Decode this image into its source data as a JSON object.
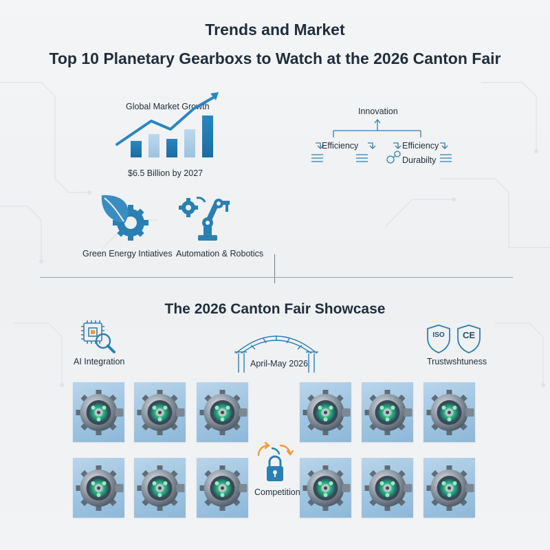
{
  "header": {
    "title": "Trends and Market",
    "subtitle": "Top 10 Planetary Gearboxs to Watch at the 2026 Canton Fair"
  },
  "trends": {
    "market_growth_label": "Global Market Growth",
    "market_value_label": "$6.5 Billion by 2027",
    "green_energy_label": "Green Energy Intiatives",
    "automation_label": "Automation & Robotics",
    "innovation": {
      "root_label": "Innovation",
      "left_label": "Efficiency",
      "right_label": "Efficiency",
      "right_sub_label": "Durabilty"
    }
  },
  "showcase": {
    "title": "The 2026 Canton Fair Showcase",
    "ai_label": "AI Integration",
    "dates_label": "April-May 2026",
    "trust_label": "Trustwshtuness",
    "iso_badge": "ISO",
    "ce_badge": "CE",
    "competition_label": "Competition"
  },
  "colors": {
    "accent_blue": "#2a7fb3",
    "light_blue": "#9ec4e1",
    "dark_text": "#1f2d3c",
    "orange": "#f29a3a",
    "green_glow": "#3fd38a"
  }
}
